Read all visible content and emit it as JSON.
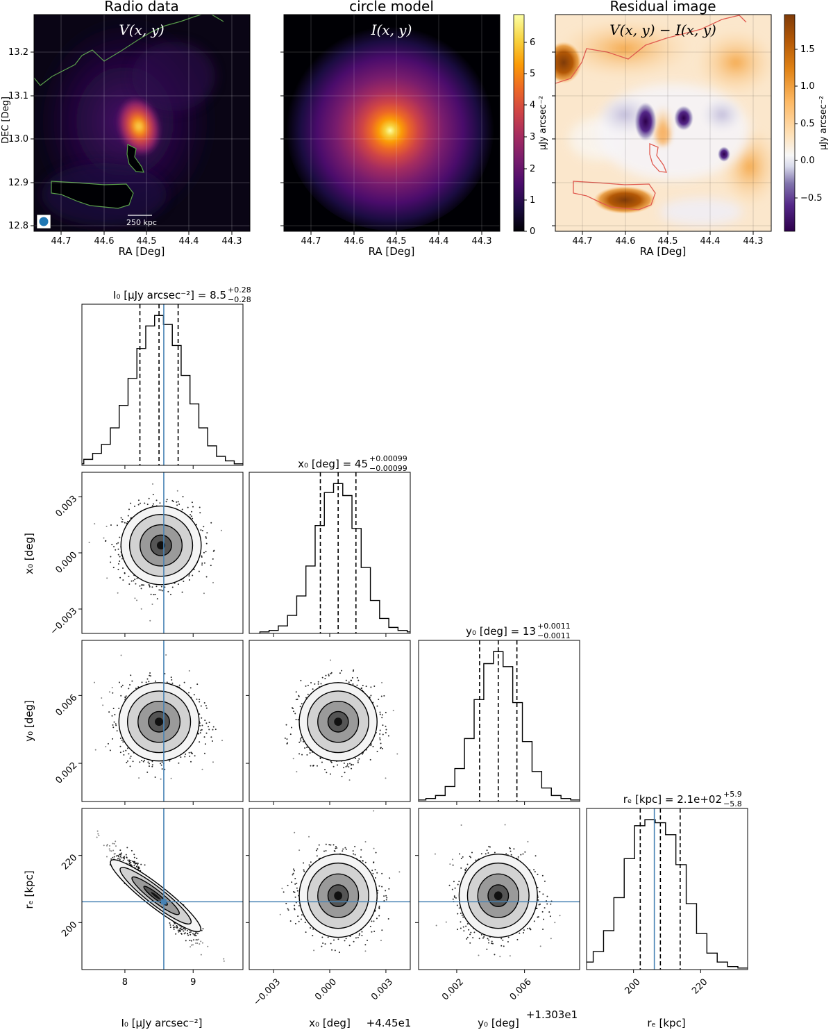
{
  "colors": {
    "inferno": [
      "#000004",
      "#1b0c41",
      "#4a0c6b",
      "#781c6d",
      "#a52c60",
      "#cf4446",
      "#ed6925",
      "#fb9b06",
      "#f7d13d",
      "#fcffa4"
    ],
    "puor": [
      "#2d004b",
      "#8073ac",
      "#d8daeb",
      "#f7f7f7",
      "#fee0b6",
      "#e08214",
      "#7f3b08"
    ],
    "truth_line": "#4682b4",
    "contour_green": "#5a9e4b",
    "contour_red": "#e05a4f",
    "beam": "#1f77b4"
  },
  "top": {
    "radio": {
      "title": "Radio data",
      "overlay": "V(x, y)",
      "scalebar_label": "250 kpc",
      "xlabel": "RA [Deg]",
      "ylabel": "DEC [Deg]",
      "xticks": [
        "44.7",
        "44.6",
        "44.5",
        "44.4",
        "44.3"
      ],
      "yticks": [
        "12.8",
        "12.9",
        "13.0",
        "13.1",
        "13.2"
      ],
      "icon": "beam-ellipse-icon"
    },
    "model": {
      "title": "circle model",
      "overlay": "I(x, y)",
      "xlabel": "RA [Deg]",
      "xticks": [
        "44.7",
        "44.6",
        "44.5",
        "44.4",
        "44.3"
      ],
      "colorbar_label": "μJy arcsec⁻²",
      "colorbar_ticks": [
        "0",
        "1",
        "2",
        "3",
        "4",
        "5",
        "6"
      ]
    },
    "residual": {
      "title": "Residual image",
      "overlay": "V(x, y) − I(x, y)",
      "xlabel": "RA [Deg]",
      "xticks": [
        "44.7",
        "44.6",
        "44.5",
        "44.4",
        "44.3"
      ],
      "colorbar_label": "μJy arcsec⁻²",
      "colorbar_ticks": [
        "−0.5",
        "0.0",
        "0.5",
        "1.0",
        "1.5"
      ]
    }
  },
  "corner": {
    "titles": {
      "I0": "I₀ [μJy arcsec⁻²] = 8.5",
      "I0_plus": "+0.28",
      "I0_minus": "−0.28",
      "x0": "x₀ [deg] = 45",
      "x0_plus": "+0.00099",
      "x0_minus": "−0.00099",
      "y0": "y₀ [deg] = 13",
      "y0_plus": "+0.0011",
      "y0_minus": "−0.0011",
      "re": "rₑ [kpc] = 2.1e+02",
      "re_plus": "+5.9",
      "re_minus": "−5.8"
    },
    "xlabels": {
      "I0": "I₀ [μJy arcsec⁻²]",
      "x0": "x₀ [deg]",
      "x0_offset": "+4.45e1",
      "y0": "y₀ [deg]",
      "y0_offset": "+1.303e1",
      "re": "rₑ [kpc]"
    },
    "ylabels": {
      "x0": "x₀ [deg]",
      "y0": "y₀ [deg]",
      "re": "rₑ [kpc]"
    },
    "ticks": {
      "I0": [
        "8",
        "9"
      ],
      "x0": [
        "−0.003",
        "0.000",
        "0.003"
      ],
      "y0": [
        "0.002",
        "0.006"
      ],
      "re": [
        "200",
        "220"
      ]
    }
  },
  "chart_data": {
    "type": "corner",
    "parameters": [
      "I0",
      "x0",
      "y0",
      "re"
    ],
    "ranges": {
      "I0": [
        7.37,
        9.73
      ],
      "x0": [
        -0.0043,
        0.0043
      ],
      "y0": [
        -0.00025,
        0.00925
      ],
      "re": [
        186,
        234
      ]
    },
    "tick_values": {
      "I0": [
        8,
        9
      ],
      "x0": [
        -0.003,
        0.0,
        0.003
      ],
      "y0": [
        0.002,
        0.006
      ],
      "re": [
        200,
        220
      ]
    },
    "truths": {
      "I0": 8.57,
      "x0": null,
      "y0": null,
      "re": 206.2
    },
    "marginals": {
      "I0": {
        "median": 8.5,
        "q16": 8.22,
        "q84": 8.78,
        "counts": [
          0.01,
          0.04,
          0.08,
          0.14,
          0.25,
          0.4,
          0.58,
          0.78,
          0.93,
          1.0,
          0.94,
          0.8,
          0.6,
          0.41,
          0.25,
          0.13,
          0.06,
          0.03,
          0.01
        ]
      },
      "x0": {
        "median": 0.00045,
        "q16": -0.0005,
        "q84": 0.0014,
        "counts": [
          0.01,
          0.02,
          0.05,
          0.12,
          0.25,
          0.45,
          0.72,
          0.94,
          1.0,
          0.92,
          0.7,
          0.44,
          0.22,
          0.1,
          0.04,
          0.02,
          0.01
        ]
      },
      "y0": {
        "median": 0.00445,
        "q16": 0.00335,
        "q84": 0.00555,
        "counts": [
          0.01,
          0.02,
          0.04,
          0.1,
          0.22,
          0.42,
          0.68,
          0.92,
          1.0,
          0.9,
          0.66,
          0.4,
          0.2,
          0.09,
          0.04,
          0.02,
          0.01
        ]
      },
      "re": {
        "median": 208,
        "q16": 202,
        "q84": 213.9,
        "counts": [
          0.02,
          0.05,
          0.12,
          0.26,
          0.48,
          0.74,
          0.96,
          1.0,
          0.98,
          0.9,
          0.7,
          0.44,
          0.24,
          0.11,
          0.05,
          0.02,
          0.01
        ]
      }
    },
    "pairs": [
      {
        "x": "I0",
        "y": "x0",
        "cx": 8.53,
        "cy": 0.0004,
        "sx": 0.28,
        "sy": 0.001,
        "rho": 0.0
      },
      {
        "x": "I0",
        "y": "y0",
        "cx": 8.5,
        "cy": 0.00445,
        "sx": 0.28,
        "sy": 0.0011,
        "rho": 0.0
      },
      {
        "x": "x0",
        "y": "y0",
        "cx": 0.00045,
        "cy": 0.00445,
        "sx": 0.00099,
        "sy": 0.0011,
        "rho": 0.0
      },
      {
        "x": "I0",
        "y": "re",
        "cx": 8.45,
        "cy": 208,
        "sx": 0.28,
        "sy": 5.9,
        "rho": -0.93
      },
      {
        "x": "x0",
        "y": "re",
        "cx": 0.00045,
        "cy": 208,
        "sx": 0.00099,
        "sy": 5.9,
        "rho": 0.0
      },
      {
        "x": "y0",
        "y": "re",
        "cx": 0.00445,
        "cy": 208,
        "sx": 0.0011,
        "sy": 5.9,
        "rho": 0.0
      }
    ]
  }
}
